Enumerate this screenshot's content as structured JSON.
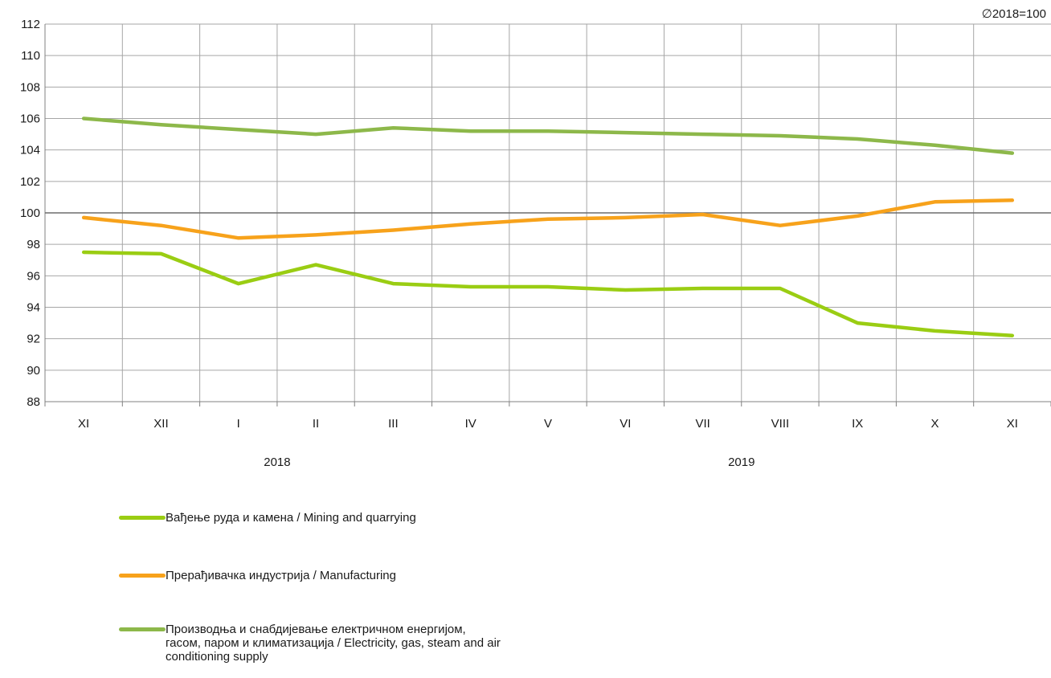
{
  "chart_data": {
    "type": "line",
    "base_note": "∅2018=100",
    "categories": [
      "XI",
      "XII",
      "I",
      "II",
      "III",
      "IV",
      "V",
      "VI",
      "VII",
      "VIII",
      "IX",
      "X",
      "XI"
    ],
    "year_labels": [
      {
        "label": "2018",
        "at_category": 2.5
      },
      {
        "label": "2019",
        "at_category": 8.5
      }
    ],
    "ylim": [
      88,
      112
    ],
    "yticks": [
      88,
      90,
      92,
      94,
      96,
      98,
      100,
      102,
      104,
      106,
      108,
      110,
      112
    ],
    "reference_line": 100,
    "grid": true,
    "legend_position": "bottom-left",
    "series": [
      {
        "name": "Вађење руда и камена / Mining and quarrying",
        "color": "#9acd13",
        "values": [
          97.5,
          97.4,
          95.5,
          96.7,
          95.5,
          95.3,
          95.3,
          95.1,
          95.2,
          95.2,
          93.0,
          92.5,
          92.2
        ]
      },
      {
        "name": "Прерађивачка индустрија / Manufacturing",
        "color": "#f7a21b",
        "values": [
          99.7,
          99.2,
          98.4,
          98.6,
          98.9,
          99.3,
          99.6,
          99.7,
          99.9,
          99.2,
          99.8,
          100.7,
          100.8
        ]
      },
      {
        "name": "Производња и снабдијевање електричном енергијом, гасом, паром и климатизација / Electricity, gas, steam and air conditioning supply",
        "color": "#8db84a",
        "values": [
          106.0,
          105.6,
          105.3,
          105.0,
          105.4,
          105.2,
          105.2,
          105.1,
          105.0,
          104.9,
          104.7,
          104.3,
          103.8
        ]
      }
    ]
  }
}
